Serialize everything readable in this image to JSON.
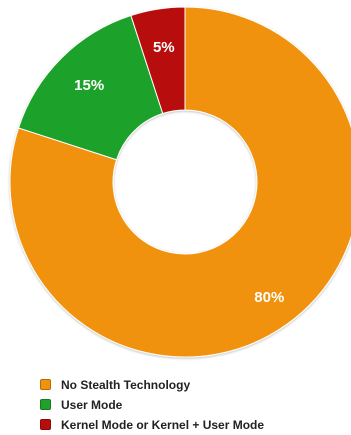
{
  "chart_data": {
    "type": "pie",
    "variant": "donut",
    "categories": [
      "No Stealth Technology",
      "User Mode",
      "Kernel Mode or Kernel + User Mode"
    ],
    "values": [
      80,
      15,
      5
    ],
    "labels": [
      "80%",
      "15%",
      "5%"
    ],
    "colors": [
      "#f0920a",
      "#1fa12a",
      "#b80d0d"
    ],
    "legend_position": "bottom",
    "title": ""
  },
  "legend": {
    "items": [
      {
        "label": "No Stealth Technology",
        "color": "#f0920a"
      },
      {
        "label": "User Mode",
        "color": "#1fa12a"
      },
      {
        "label": "Kernel Mode or Kernel + User Mode",
        "color": "#b80d0d"
      }
    ]
  }
}
